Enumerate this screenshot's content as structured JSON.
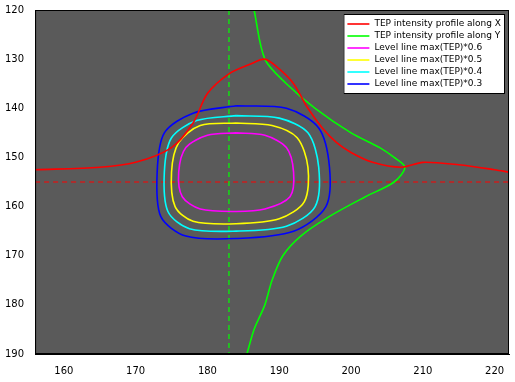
{
  "chart_data": {
    "type": "line",
    "xlim": [
      156,
      222
    ],
    "ylim": [
      120,
      190
    ],
    "xticks": [
      160,
      170,
      180,
      190,
      200,
      210,
      220
    ],
    "yticks": [
      120,
      130,
      140,
      150,
      160,
      170,
      180,
      190
    ],
    "grid": false,
    "legend": "upper right",
    "series": [
      {
        "name": "TEP intensity profile along X",
        "color": "#ff0000",
        "line_style": "solid",
        "x": [
          156,
          165,
          170,
          175,
          178,
          180,
          183,
          186,
          188,
          190,
          192,
          194,
          196,
          198,
          200,
          203,
          207,
          210,
          215,
          220,
          222
        ],
        "values": [
          152.5,
          152,
          151,
          148,
          143,
          137,
          133,
          131,
          130,
          132,
          135,
          140,
          144,
          147,
          149,
          151,
          152,
          151,
          151.5,
          152.5,
          153
        ]
      },
      {
        "name": "TEP intensity profile along Y",
        "color": "#00ff00",
        "line_style": "solid",
        "x": [
          186.5,
          188,
          191,
          195,
          200,
          204,
          206,
          207.5,
          206,
          202,
          197,
          193,
          190.5,
          189,
          188,
          186.5,
          185.5
        ],
        "values": [
          120,
          130,
          135,
          140,
          145,
          148,
          150,
          152,
          155,
          158,
          162,
          166,
          170,
          175,
          180,
          185,
          190
        ]
      },
      {
        "name": "Level line max(TEP)*0.6",
        "color": "#ff00ff",
        "line_style": "solid",
        "x": [
          184,
          188,
          191,
          192,
          191.5,
          188,
          184,
          179,
          176.5,
          176,
          177,
          180,
          184
        ],
        "values": [
          145,
          145.5,
          148,
          153,
          158,
          160.5,
          161,
          160.5,
          158,
          153,
          148,
          145.5,
          145
        ]
      },
      {
        "name": "Level line max(TEP)*0.5",
        "color": "#ffff00",
        "line_style": "solid",
        "x": [
          184,
          189,
          192.5,
          194,
          193.5,
          190,
          184,
          178,
          175.5,
          175,
          176,
          179,
          184
        ],
        "values": [
          143,
          143.5,
          146,
          152,
          159,
          162.5,
          163.5,
          163,
          160,
          153,
          147,
          143.5,
          143
        ]
      },
      {
        "name": "Level line max(TEP)*0.4",
        "color": "#00ffff",
        "line_style": "solid",
        "x": [
          184,
          190,
          194,
          195.5,
          195,
          191,
          184,
          177.5,
          174.5,
          174,
          175,
          178.5,
          184
        ],
        "values": [
          141.5,
          142,
          145,
          152,
          160,
          164,
          165,
          164.5,
          161,
          153,
          146,
          142.5,
          141.5
        ]
      },
      {
        "name": "Level line max(TEP)*0.3",
        "color": "#0000ff",
        "line_style": "solid",
        "x": [
          184,
          191,
          195.5,
          197,
          196.5,
          192,
          184,
          177,
          173.5,
          173,
          174,
          178,
          184
        ],
        "values": [
          139.5,
          140,
          144,
          152,
          160,
          165,
          166.5,
          166,
          162,
          153,
          145,
          141,
          139.5
        ]
      }
    ],
    "vlines": [
      {
        "x": 183,
        "color": "#00ff00",
        "line_style": "dashed"
      }
    ],
    "hlines": [
      {
        "y": 155,
        "color": "#ff0000",
        "line_style": "dashed"
      }
    ]
  }
}
